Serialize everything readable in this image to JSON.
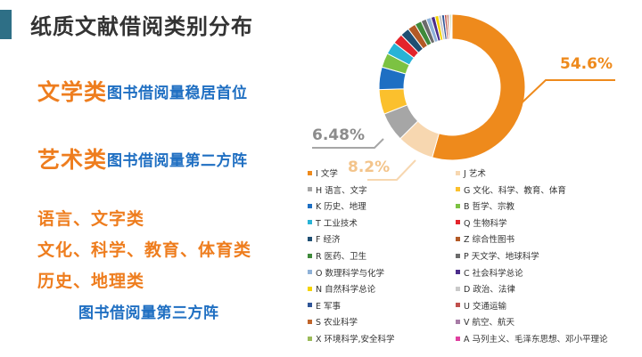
{
  "title": "纸质文献借阅类别分布",
  "highlights": [
    {
      "category": "文学类",
      "description": "图书借阅量稳居首位"
    },
    {
      "category": "艺术类",
      "description": "图书借阅量第二方阵"
    }
  ],
  "third_group": {
    "categories": [
      "语言、文字类",
      "文化、科学、教育、体育类",
      "历史、地理类"
    ],
    "description": "图书借阅量第三方阵"
  },
  "callouts": {
    "literature": "54.6%",
    "art": "8.2%",
    "language": "6.48%"
  },
  "chart_data": {
    "type": "pie",
    "donut": true,
    "start": "top",
    "direction": "clockwise",
    "slices": [
      {
        "label": "I 文学",
        "value": 54.6,
        "color": "#ee8a1c"
      },
      {
        "label": "J 艺术",
        "value": 8.2,
        "color": "#f7d7b0"
      },
      {
        "label": "H 语言、文字",
        "value": 6.48,
        "color": "#a6a6a6"
      },
      {
        "label": "G 文化、科学、教育、体育",
        "value": 5.5,
        "color": "#fbc02d"
      },
      {
        "label": "K 历史、地理",
        "value": 5.0,
        "color": "#1e6fc3"
      },
      {
        "label": "B 哲学、宗教",
        "value": 3.2,
        "color": "#7cc242"
      },
      {
        "label": "T 工业技术",
        "value": 2.8,
        "color": "#28b3d6"
      },
      {
        "label": "Q 生物科学",
        "value": 2.3,
        "color": "#e3242b"
      },
      {
        "label": "F 经济",
        "value": 2.0,
        "color": "#1f4f73"
      },
      {
        "label": "Z 综合性图书",
        "value": 1.8,
        "color": "#b35a26"
      },
      {
        "label": "R 医药、卫生",
        "value": 1.5,
        "color": "#3f8a3b"
      },
      {
        "label": "P 天文学、地球科学",
        "value": 1.2,
        "color": "#6b6b6b"
      },
      {
        "label": "O 数理科学与化学",
        "value": 1.1,
        "color": "#8fb2d8"
      },
      {
        "label": "C 社会科学总论",
        "value": 0.9,
        "color": "#4b2d8a"
      },
      {
        "label": "N 自然科学总论",
        "value": 0.8,
        "color": "#f5d400"
      },
      {
        "label": "D 政治、法律",
        "value": 0.7,
        "color": "#c9c9c9"
      },
      {
        "label": "E 军事",
        "value": 0.6,
        "color": "#2f5597"
      },
      {
        "label": "U 交通运输",
        "value": 0.5,
        "color": "#c0504d"
      },
      {
        "label": "S 农业科学",
        "value": 0.4,
        "color": "#c0652b"
      },
      {
        "label": "V 航空、航天",
        "value": 0.3,
        "color": "#a77ca6"
      },
      {
        "label": "X 环境科学,安全科学",
        "value": 0.3,
        "color": "#9bbb59"
      },
      {
        "label": "A 马列主义、毛泽东思想、邓小平理论",
        "value": 0.2,
        "color": "#e040a0"
      }
    ]
  }
}
